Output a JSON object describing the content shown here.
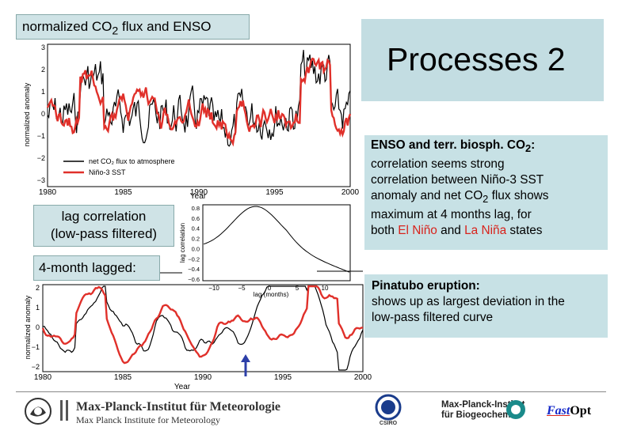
{
  "title_bar": {
    "text": "normalized CO",
    "sub": "2",
    "text2": " flux and ENSO"
  },
  "processes_title": "Processes 2",
  "enso_panel": {
    "heading": "ENSO and terr. biosph. CO",
    "heading_sub": "2",
    "heading_end": ":",
    "line1": "correlation seems strong",
    "line2": "correlation between Niño-3 SST",
    "line3a": "anomaly and net CO",
    "line3_sub": "2",
    "line3b": " flux shows",
    "line4": "maximum at 4 months lag, for",
    "line5a": "both ",
    "el_nino": "El Niño",
    "line5b": " and ",
    "la_nina": "La Niña",
    "line5c": " states"
  },
  "pinatubo_panel": {
    "heading": "Pinatubo eruption:",
    "line1": "shows up as largest deviation in the",
    "line2": "low-pass filtered curve"
  },
  "lag_label": {
    "line1": "lag correlation",
    "line2": "(low-pass filtered)"
  },
  "lagged_label": "4-month lagged:",
  "top_plot": {
    "ylabel": "normalized anomaly",
    "xlabel": "Year",
    "yticks": [
      "3",
      "2",
      "1",
      "0",
      "−1",
      "−2",
      "−3"
    ],
    "xticks": [
      "1980",
      "1985",
      "1990",
      "1995",
      "2000"
    ],
    "legend_black": "net CO₂ flux to atmosphere",
    "legend_red": "Niño-3 SST"
  },
  "lag_plot": {
    "ylabel": "lag correlation",
    "xlabel": "lag (months)",
    "yticks": [
      "0.8",
      "0.6",
      "0.4",
      "0.2",
      "0.0",
      "−0.2",
      "−0.4",
      "−0.6"
    ],
    "xticks": [
      "−10",
      "−5",
      "0",
      "5",
      "10"
    ]
  },
  "bottom_plot": {
    "ylabel": "normalized anomaly",
    "xlabel": "Year",
    "yticks": [
      "2",
      "1",
      "0",
      "−1",
      "−2"
    ],
    "xticks": [
      "1980",
      "1985",
      "1990",
      "1995",
      "2000"
    ]
  },
  "footer": {
    "mpi_met_l1": "Max-Planck-Institut für Meteorologie",
    "mpi_met_l2": "Max Planck Institute for Meteorology",
    "csiro": "CSIRO",
    "mpi_bgc_l1": "Max-Planck-Institut",
    "mpi_bgc_l2": "für Biogeochemie",
    "fastopt_a": "Fast",
    "fastopt_b": "Opt"
  },
  "colors": {
    "red_series": "#e0302a",
    "black_series": "#000000",
    "panel": "#c7e1e5",
    "arrow": "#2c3fa8"
  }
}
